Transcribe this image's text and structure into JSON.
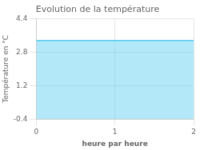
{
  "chart_data": {
    "type": "area",
    "title": "Evolution de la température",
    "x_label": "heure par heure",
    "y_label": "Température en °C",
    "x": [
      0,
      2
    ],
    "values": [
      3.35,
      3.35
    ],
    "color": "#55ccee",
    "xlim": [
      0,
      2
    ],
    "ylim": [
      -0.4,
      4.4
    ],
    "xticks": [
      0,
      1,
      2
    ],
    "yticks": [
      -0.4,
      1.2,
      2.8,
      4.4
    ],
    "grid": true
  }
}
